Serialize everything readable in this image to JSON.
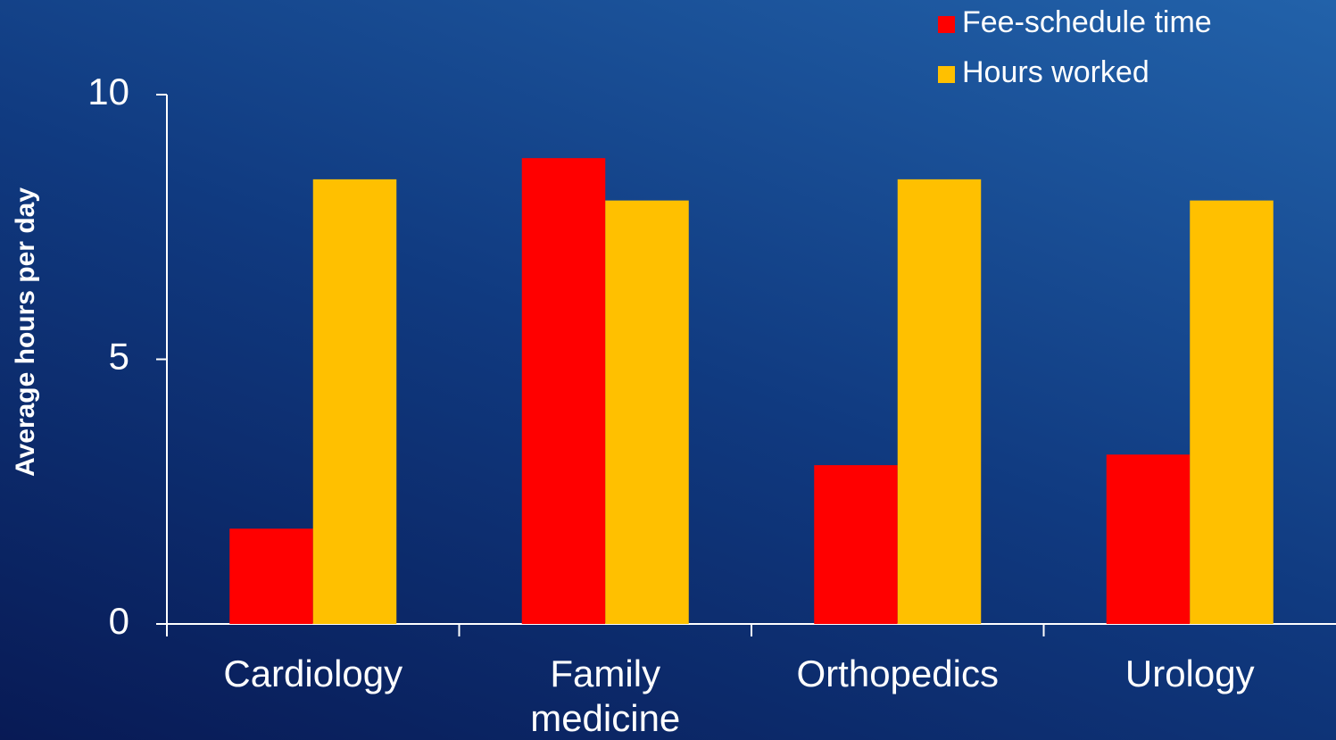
{
  "chart_data": {
    "type": "bar",
    "categories": [
      "Cardiology",
      "Family medicine",
      "Orthopedics",
      "Urology"
    ],
    "series": [
      {
        "name": "Fee-schedule time",
        "color": "#ff0000",
        "values": [
          1.8,
          8.8,
          3.0,
          3.2
        ]
      },
      {
        "name": "Hours worked",
        "color": "#ffc000",
        "values": [
          8.4,
          8.0,
          8.4,
          8.0
        ]
      }
    ],
    "y_label": "Average hours per day",
    "ylim": [
      0,
      10
    ],
    "yticks": [
      0,
      5,
      10
    ],
    "grid": false,
    "legend": "top-right"
  }
}
